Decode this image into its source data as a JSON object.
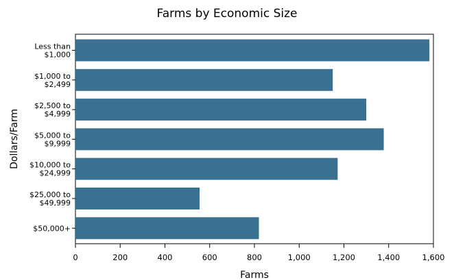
{
  "chart_data": {
    "type": "bar",
    "orientation": "horizontal",
    "title": "Farms by Economic Size",
    "xlabel": "Farms",
    "ylabel": "Dollars/Farm",
    "categories": [
      [
        "Less than",
        "$1,000"
      ],
      [
        "$1,000 to",
        "$2,499"
      ],
      [
        "$2,500 to",
        "$4,999"
      ],
      [
        "$5,000 to",
        "$9,999"
      ],
      [
        "$10,000 to",
        "$24,999"
      ],
      [
        "$25,000 to",
        "$49,999"
      ],
      [
        "$50,000+"
      ]
    ],
    "values": [
      1582,
      1150,
      1300,
      1378,
      1172,
      555,
      820
    ],
    "xlim": [
      0,
      1600
    ],
    "xticks": [
      0,
      200,
      400,
      600,
      800,
      1000,
      1200,
      1400,
      1600
    ],
    "xtick_labels": [
      "0",
      "200",
      "400",
      "600",
      "800",
      "1,000",
      "1,200",
      "1,400",
      "1,600"
    ],
    "grid": false,
    "legend": "none",
    "bar_color": "#3a7191"
  }
}
